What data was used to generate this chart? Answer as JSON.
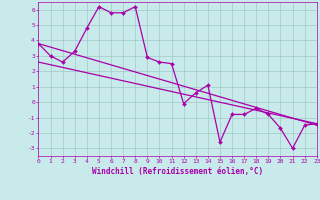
{
  "xlabel": "Windchill (Refroidissement éolien,°C)",
  "xlim": [
    0,
    23
  ],
  "ylim": [
    -3.5,
    6.5
  ],
  "yticks": [
    -3,
    -2,
    -1,
    0,
    1,
    2,
    3,
    4,
    5,
    6
  ],
  "xticks": [
    0,
    1,
    2,
    3,
    4,
    5,
    6,
    7,
    8,
    9,
    10,
    11,
    12,
    13,
    14,
    15,
    16,
    17,
    18,
    19,
    20,
    21,
    22,
    23
  ],
  "background_color": "#c8eaea",
  "line_color": "#aa00aa",
  "grid_color": "#a0c8c8",
  "line1_x": [
    0,
    1,
    2,
    3,
    4,
    5,
    6,
    7,
    8,
    9,
    10,
    11,
    12,
    13,
    14,
    15,
    16,
    17,
    18,
    19,
    20,
    21,
    22,
    23
  ],
  "line1_y": [
    3.8,
    3.0,
    2.6,
    3.3,
    4.8,
    6.2,
    5.8,
    5.8,
    6.2,
    2.9,
    2.6,
    2.5,
    -0.1,
    0.6,
    1.1,
    -2.6,
    -0.8,
    -0.8,
    -0.4,
    -0.8,
    -1.7,
    -3.0,
    -1.5,
    -1.4
  ],
  "line2_x": [
    0,
    23
  ],
  "line2_y": [
    3.8,
    -1.5
  ],
  "line3_x": [
    0,
    23
  ],
  "line3_y": [
    2.6,
    -1.4
  ],
  "marker": "D",
  "marker_size": 2.0,
  "linewidth": 0.9
}
